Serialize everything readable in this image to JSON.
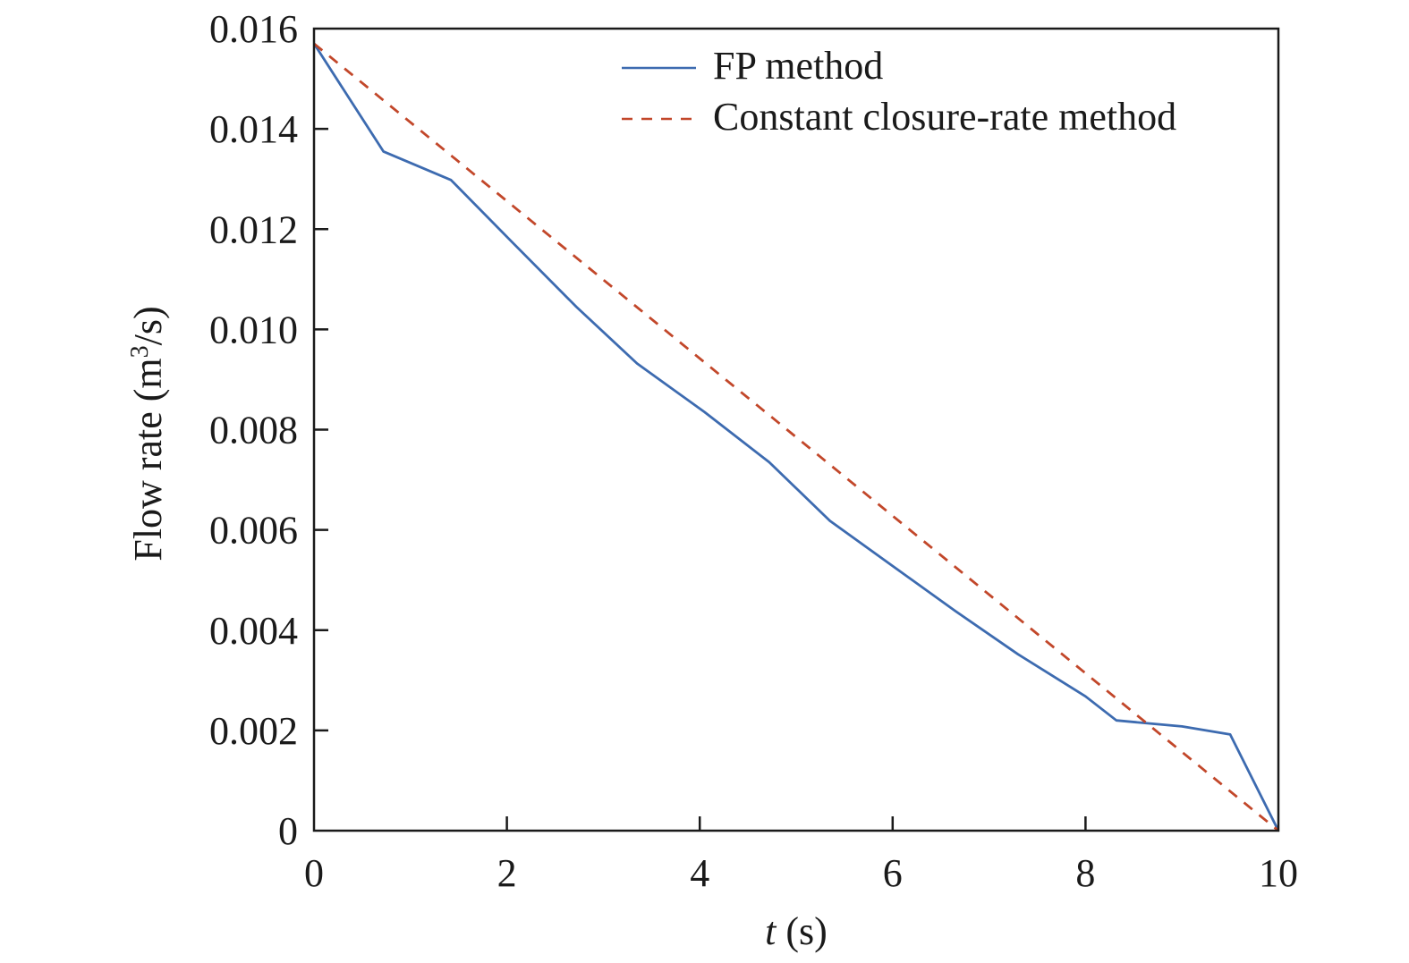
{
  "chart_data": {
    "type": "line",
    "xlabel_italic": "t",
    "xlabel_rest": " (s)",
    "ylabel_main": "Flow rate (m",
    "ylabel_sup": "3",
    "ylabel_end": "/s)",
    "xlim": [
      0,
      10
    ],
    "ylim": [
      0,
      0.016
    ],
    "xticks": [
      0,
      2,
      4,
      6,
      8,
      10
    ],
    "xtick_labels": [
      "0",
      "2",
      "4",
      "6",
      "8",
      "10"
    ],
    "yticks": [
      0,
      0.002,
      0.004,
      0.006,
      0.008,
      0.01,
      0.012,
      0.014,
      0.016
    ],
    "ytick_labels": [
      "0",
      "0.002",
      "0.004",
      "0.006",
      "0.008",
      "0.010",
      "0.012",
      "0.014",
      "0.016"
    ],
    "grid": false,
    "legend_position": "top-right",
    "series": [
      {
        "name": "FP method",
        "color": "#3d6bb0",
        "style": "solid",
        "x": [
          0,
          0.72,
          1.42,
          2.05,
          2.72,
          3.35,
          4.05,
          4.72,
          5.35,
          6.0,
          6.65,
          7.3,
          8.0,
          8.32,
          9.0,
          9.5,
          10.0
        ],
        "y": [
          0.0157,
          0.01355,
          0.01298,
          0.01175,
          0.01045,
          0.00932,
          0.00835,
          0.00735,
          0.00618,
          0.00528,
          0.00438,
          0.00352,
          0.00268,
          0.0022,
          0.00208,
          0.00192,
          0.0
        ]
      },
      {
        "name": "Constant closure-rate method",
        "color": "#c2472a",
        "style": "dashed",
        "x": [
          0,
          10
        ],
        "y": [
          0.0157,
          0.0
        ]
      }
    ]
  }
}
